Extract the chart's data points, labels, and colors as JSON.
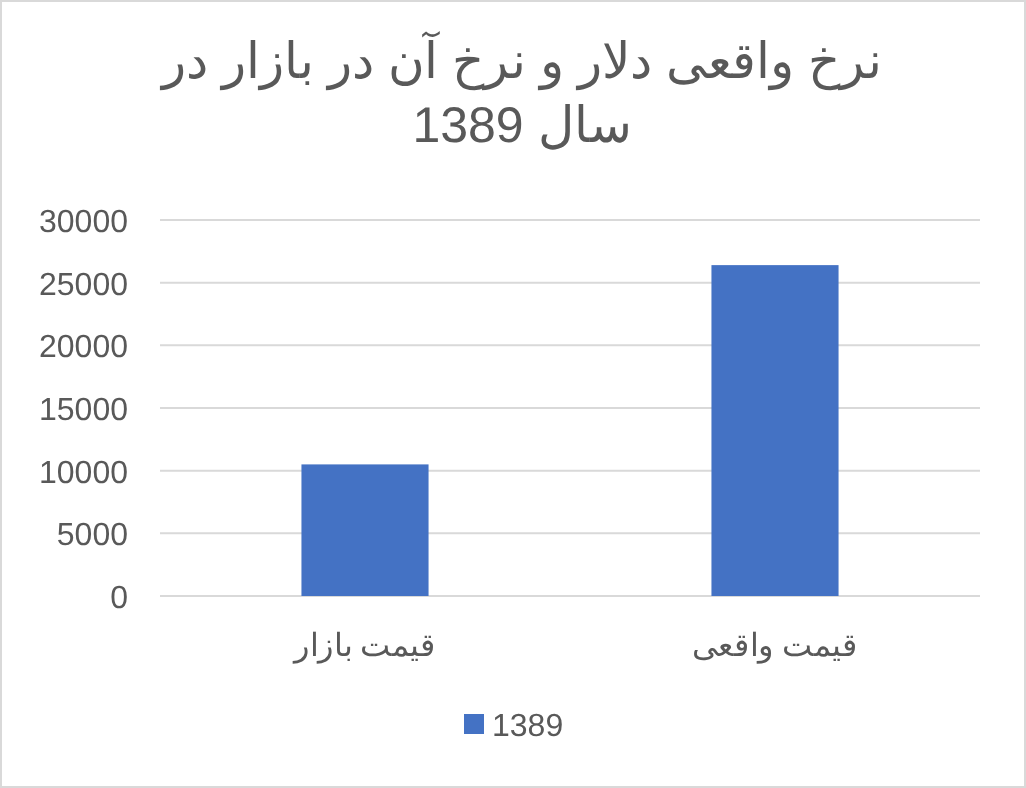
{
  "chart_data": {
    "type": "bar",
    "title": "نرخ واقعی دلار و نرخ آن در بازار در سال 1389",
    "categories": [
      "قیمت بازار",
      "قیمت واقعی"
    ],
    "series": [
      {
        "name": "1389",
        "color": "#4472c4",
        "values": [
          10500,
          26400
        ]
      }
    ],
    "ylim": [
      0,
      30000
    ],
    "yticks": [
      0,
      5000,
      10000,
      15000,
      20000,
      25000,
      30000
    ],
    "grid": "y",
    "legend": "bottom"
  }
}
